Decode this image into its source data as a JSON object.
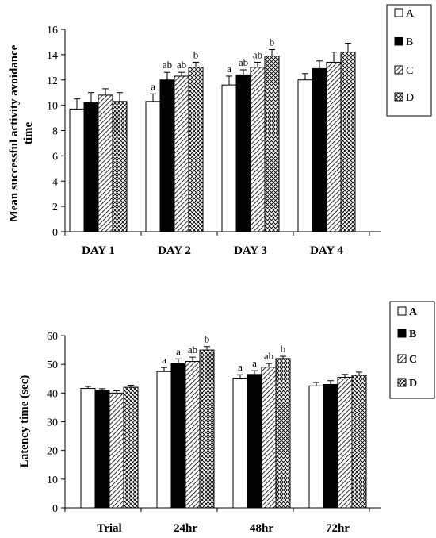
{
  "colors": {
    "A": "#ffffff",
    "B": "#000000",
    "stroke": "#000000"
  },
  "chart_data": [
    {
      "type": "bar",
      "ylabel": "Mean successful activity avoidance time",
      "ylim": [
        0,
        16
      ],
      "yticks": [
        "0",
        "2",
        "4",
        "6",
        "8",
        "10",
        "12",
        "14",
        "16"
      ],
      "categories": [
        "DAY 1",
        "DAY 2",
        "DAY 3",
        "DAY 4"
      ],
      "series": [
        {
          "name": "A",
          "pattern": "white",
          "values": [
            9.7,
            10.3,
            11.6,
            12.0
          ],
          "errors": [
            0.8,
            0.6,
            0.7,
            0.5
          ]
        },
        {
          "name": "B",
          "pattern": "black",
          "values": [
            10.2,
            12.0,
            12.4,
            12.9
          ],
          "errors": [
            0.8,
            0.6,
            0.4,
            0.6
          ]
        },
        {
          "name": "C",
          "pattern": "hatch",
          "values": [
            10.8,
            12.3,
            13.0,
            13.4
          ],
          "errors": [
            0.5,
            0.3,
            0.4,
            0.8
          ]
        },
        {
          "name": "D",
          "pattern": "cross",
          "values": [
            10.3,
            13.0,
            13.9,
            14.2
          ],
          "errors": [
            0.7,
            0.4,
            0.5,
            0.7
          ]
        }
      ],
      "annotations": [
        [
          "",
          "a",
          "a",
          ""
        ],
        [
          "",
          "ab",
          "ab",
          ""
        ],
        [
          "",
          "ab",
          "ab",
          ""
        ],
        [
          "",
          "b",
          "b",
          ""
        ]
      ],
      "legend": {
        "position": "top-right",
        "bold": false
      }
    },
    {
      "type": "bar",
      "ylabel": "Latency time (sec)",
      "ylim": [
        0,
        60
      ],
      "yticks": [
        "0",
        "10",
        "20",
        "30",
        "40",
        "50",
        "60"
      ],
      "categories": [
        "Trial",
        "24hr",
        "48hr",
        "72hr"
      ],
      "series": [
        {
          "name": "A",
          "pattern": "white",
          "values": [
            41.6,
            47.5,
            45.2,
            42.5
          ],
          "errors": [
            0.7,
            1.4,
            1.2,
            1.2
          ]
        },
        {
          "name": "B",
          "pattern": "black",
          "values": [
            40.9,
            50.3,
            46.5,
            43.0
          ],
          "errors": [
            0.6,
            1.6,
            1.3,
            1.3
          ]
        },
        {
          "name": "C",
          "pattern": "hatch",
          "values": [
            40.0,
            51.0,
            49.0,
            45.5
          ],
          "errors": [
            0.8,
            1.5,
            1.3,
            1.0
          ]
        },
        {
          "name": "D",
          "pattern": "cross",
          "values": [
            42.0,
            55.0,
            52.0,
            46.2
          ],
          "errors": [
            0.7,
            1.2,
            0.8,
            1.1
          ]
        }
      ],
      "annotations": [
        [
          "",
          "a",
          "a",
          ""
        ],
        [
          "",
          "a",
          "a",
          ""
        ],
        [
          "",
          "ab",
          "ab",
          ""
        ],
        [
          "",
          "b",
          "b",
          ""
        ]
      ],
      "legend": {
        "position": "top-right",
        "bold": true
      }
    }
  ]
}
